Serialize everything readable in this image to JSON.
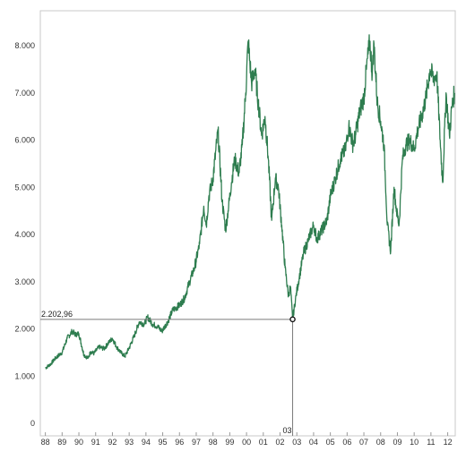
{
  "chart_data": {
    "type": "line",
    "title": "",
    "xlabel": "",
    "ylabel": "",
    "xlim": [
      1987.7,
      2012.45
    ],
    "ylim": [
      0,
      8400
    ],
    "grid": false,
    "legend": "none",
    "line_color": "#2e7d4f",
    "x_ticks": [
      {
        "value": 1988,
        "label": "88"
      },
      {
        "value": 1989,
        "label": "89"
      },
      {
        "value": 1990,
        "label": "90"
      },
      {
        "value": 1991,
        "label": "91"
      },
      {
        "value": 1992,
        "label": "92"
      },
      {
        "value": 1993,
        "label": "93"
      },
      {
        "value": 1994,
        "label": "94"
      },
      {
        "value": 1995,
        "label": "95"
      },
      {
        "value": 1996,
        "label": "96"
      },
      {
        "value": 1997,
        "label": "97"
      },
      {
        "value": 1998,
        "label": "98"
      },
      {
        "value": 1999,
        "label": "99"
      },
      {
        "value": 2000,
        "label": "00"
      },
      {
        "value": 2001,
        "label": "01"
      },
      {
        "value": 2002,
        "label": "02"
      },
      {
        "value": 2003,
        "label": "03"
      },
      {
        "value": 2004,
        "label": "04"
      },
      {
        "value": 2005,
        "label": "05"
      },
      {
        "value": 2006,
        "label": "06"
      },
      {
        "value": 2007,
        "label": "07"
      },
      {
        "value": 2008,
        "label": "08"
      },
      {
        "value": 2009,
        "label": "09"
      },
      {
        "value": 2010,
        "label": "10"
      },
      {
        "value": 2011,
        "label": "11"
      },
      {
        "value": 2012,
        "label": "12"
      }
    ],
    "y_ticks": [
      {
        "value": 0,
        "label": "0"
      },
      {
        "value": 1000,
        "label": "1.000"
      },
      {
        "value": 2000,
        "label": "2.000"
      },
      {
        "value": 3000,
        "label": "3.000"
      },
      {
        "value": 4000,
        "label": "4.000"
      },
      {
        "value": 5000,
        "label": "5.000"
      },
      {
        "value": 6000,
        "label": "6.000"
      },
      {
        "value": 7000,
        "label": "7.000"
      },
      {
        "value": 8000,
        "label": "8.000"
      }
    ],
    "series": [
      {
        "x": [
          1988.0,
          1988.3,
          1988.6,
          1989.0,
          1989.3,
          1989.6,
          1989.8,
          1990.0,
          1990.3,
          1990.55,
          1990.7,
          1990.9,
          1991.2,
          1991.5,
          1991.8,
          1992.0,
          1992.25,
          1992.5,
          1992.75,
          1993.0,
          1993.3,
          1993.6,
          1993.9,
          1994.1,
          1994.4,
          1994.7,
          1994.95,
          1995.3,
          1995.6,
          1996.0,
          1996.3,
          1996.6,
          1996.9,
          1997.2,
          1997.45,
          1997.6,
          1997.75,
          1998.0,
          1998.3,
          1998.55,
          1998.75,
          1998.9,
          1999.1,
          1999.3,
          1999.55,
          1999.75,
          1999.95,
          2000.1,
          2000.3,
          2000.5,
          2000.7,
          2000.9,
          2001.1,
          2001.3,
          2001.5,
          2001.72,
          2001.9,
          2002.1,
          2002.3,
          2002.5,
          2002.62,
          2002.75,
          2002.95,
          2003.15,
          2003.4,
          2003.7,
          2004.0,
          2004.2,
          2004.5,
          2004.8,
          2005.0,
          2005.3,
          2005.6,
          2005.9,
          2006.1,
          2006.35,
          2006.5,
          2006.75,
          2007.0,
          2007.15,
          2007.35,
          2007.5,
          2007.6,
          2007.8,
          2008.0,
          2008.2,
          2008.4,
          2008.6,
          2008.8,
          2008.95,
          2009.1,
          2009.3,
          2009.5,
          2009.75,
          2010.0,
          2010.2,
          2010.45,
          2010.7,
          2010.95,
          2011.15,
          2011.35,
          2011.55,
          2011.7,
          2011.9,
          2012.1,
          2012.25,
          2012.4
        ],
        "y": [
          1170,
          1250,
          1380,
          1500,
          1800,
          1950,
          1880,
          1900,
          1450,
          1380,
          1520,
          1480,
          1620,
          1580,
          1720,
          1800,
          1620,
          1500,
          1420,
          1600,
          1850,
          2150,
          2100,
          2250,
          2100,
          2050,
          1950,
          2150,
          2400,
          2500,
          2650,
          3000,
          3300,
          3800,
          4600,
          4200,
          4800,
          5200,
          6200,
          4700,
          4100,
          4500,
          5100,
          5600,
          5300,
          5900,
          7000,
          8100,
          7200,
          7500,
          6800,
          6100,
          6500,
          5600,
          4300,
          5200,
          5000,
          4200,
          3300,
          2700,
          2900,
          2203,
          2700,
          3100,
          3600,
          3900,
          4200,
          3900,
          4100,
          4300,
          4800,
          5200,
          5600,
          5800,
          6300,
          5900,
          6100,
          6600,
          6900,
          7500,
          8100,
          7400,
          8050,
          6800,
          6400,
          5900,
          4200,
          3650,
          5000,
          4500,
          4200,
          5600,
          5900,
          6000,
          5800,
          6200,
          6500,
          6900,
          7500,
          7300,
          7400,
          6000,
          5100,
          7000,
          6100,
          6700,
          7000
        ]
      }
    ],
    "annotation": {
      "x": 2002.75,
      "y": 2202.96,
      "value_label": "2.202,96",
      "x_label": "03"
    }
  }
}
